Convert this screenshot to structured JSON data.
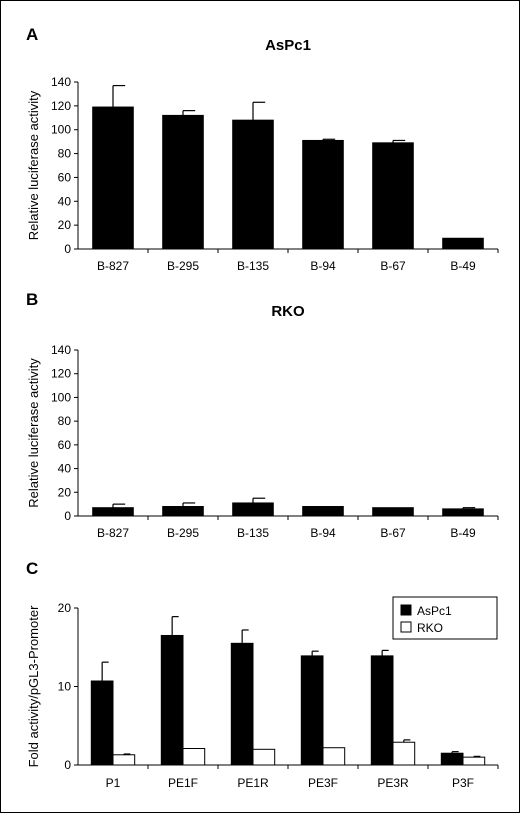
{
  "chart_data": [
    {
      "panel": "A",
      "type": "bar",
      "title": "AsPc1",
      "ylabel": "Relative luciferase activity",
      "ylim": [
        0,
        140
      ],
      "yticks": [
        0,
        20,
        40,
        60,
        80,
        100,
        120,
        140
      ],
      "categories": [
        "B-827",
        "B-295",
        "B-135",
        "B-94",
        "B-67",
        "B-49"
      ],
      "series": [
        {
          "values": [
            119,
            112,
            108,
            91,
            89,
            9
          ],
          "errors": [
            18,
            4,
            15,
            1,
            2,
            0
          ],
          "color": "#000000"
        }
      ]
    },
    {
      "panel": "B",
      "type": "bar",
      "title": "RKO",
      "ylabel": "Relative luciferase activity",
      "ylim": [
        0,
        140
      ],
      "yticks": [
        0,
        20,
        40,
        60,
        80,
        100,
        120,
        140
      ],
      "categories": [
        "B-827",
        "B-295",
        "B-135",
        "B-94",
        "B-67",
        "B-49"
      ],
      "series": [
        {
          "values": [
            7,
            8,
            11,
            8,
            7,
            6
          ],
          "errors": [
            3,
            3,
            4,
            0,
            0,
            1
          ],
          "color": "#000000"
        }
      ]
    },
    {
      "panel": "C",
      "type": "bar",
      "title": "",
      "ylabel": "Fold activity/pGL3-Promoter",
      "ylim": [
        0,
        20
      ],
      "yticks": [
        0,
        10,
        20
      ],
      "categories": [
        "P1",
        "PE1F",
        "PE1R",
        "PE3F",
        "PE3R",
        "P3F"
      ],
      "legend_position": "top-right",
      "series": [
        {
          "name": "AsPc1",
          "values": [
            10.7,
            16.5,
            15.5,
            13.9,
            13.9,
            1.5
          ],
          "errors": [
            2.4,
            2.4,
            1.7,
            0.6,
            0.7,
            0.2
          ],
          "color": "#000000"
        },
        {
          "name": "RKO",
          "values": [
            1.3,
            2.1,
            2.0,
            2.2,
            2.9,
            1.0
          ],
          "errors": [
            0.1,
            0.0,
            0.0,
            0.0,
            0.3,
            0.1
          ],
          "color": "#ffffff"
        }
      ]
    }
  ]
}
